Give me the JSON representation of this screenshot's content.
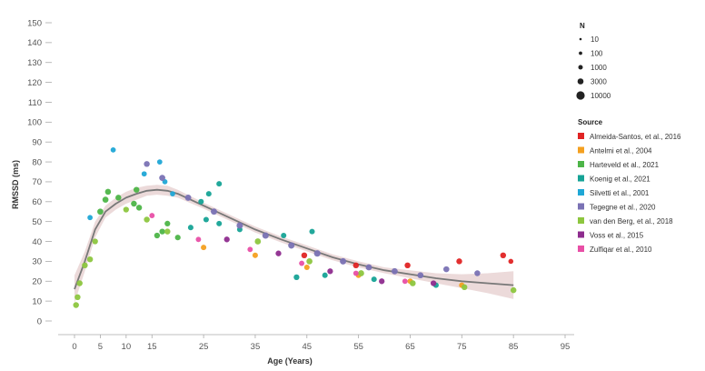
{
  "chart_data": {
    "type": "scatter",
    "xlabel": "Age (Years)",
    "ylabel": "RMSSD (ms)",
    "xlim": [
      0,
      95
    ],
    "ylim": [
      0,
      150
    ],
    "x_ticks": [
      0,
      5,
      10,
      15,
      25,
      35,
      45,
      55,
      65,
      75,
      85,
      95
    ],
    "y_ticks": [
      0,
      10,
      20,
      30,
      40,
      50,
      60,
      70,
      80,
      90,
      100,
      110,
      120,
      130,
      140,
      150
    ],
    "grid": false,
    "size_legend": {
      "title": "N",
      "entries": [
        "10",
        "100",
        "1000",
        "3000",
        "10000"
      ],
      "n_values": [
        10,
        100,
        1000,
        3000,
        10000
      ]
    },
    "source_legend_title": "Source",
    "series": [
      {
        "name": "Almeida-Santos, et al., 2016",
        "color": "#e02424",
        "points": [
          [
            44.5,
            33,
            300
          ],
          [
            54.5,
            28,
            300
          ],
          [
            64.5,
            28,
            300
          ],
          [
            74.5,
            30,
            300
          ],
          [
            83,
            33,
            300
          ],
          [
            84.5,
            30,
            30
          ]
        ]
      },
      {
        "name": "Antelmi et al., 2004",
        "color": "#f4a020",
        "points": [
          [
            25,
            37,
            100
          ],
          [
            35,
            33,
            100
          ],
          [
            45,
            27,
            100
          ],
          [
            55,
            23,
            100
          ],
          [
            65,
            20,
            100
          ],
          [
            75,
            18,
            100
          ]
        ]
      },
      {
        "name": "Harteveld et al., 2021",
        "color": "#4db548",
        "points": [
          [
            5,
            55,
            600
          ],
          [
            6,
            61,
            500
          ],
          [
            6.5,
            65,
            400
          ],
          [
            8.5,
            62,
            300
          ],
          [
            11.5,
            59,
            300
          ],
          [
            12,
            66,
            300
          ],
          [
            12.5,
            57,
            300
          ],
          [
            16,
            43,
            200
          ],
          [
            17,
            45,
            200
          ],
          [
            18,
            49,
            150
          ],
          [
            20,
            42,
            150
          ]
        ]
      },
      {
        "name": "Koenig et al., 2021",
        "color": "#16a396",
        "points": [
          [
            22.5,
            47,
            100
          ],
          [
            24.5,
            60,
            100
          ],
          [
            25.5,
            51,
            100
          ],
          [
            26,
            64,
            100
          ],
          [
            28,
            69,
            100
          ],
          [
            28,
            49,
            100
          ],
          [
            32,
            46,
            100
          ],
          [
            40.5,
            43,
            100
          ],
          [
            43,
            22,
            200
          ],
          [
            46,
            45,
            100
          ],
          [
            48.5,
            23,
            100
          ],
          [
            58,
            21,
            100
          ],
          [
            70,
            18,
            100
          ]
        ]
      },
      {
        "name": "Silvetti et al., 2001",
        "color": "#1fa7d6",
        "points": [
          [
            3,
            52,
            50
          ],
          [
            7.5,
            86,
            50
          ],
          [
            13.5,
            74,
            50
          ],
          [
            16.5,
            80,
            50
          ],
          [
            17.5,
            70,
            50
          ],
          [
            19,
            64,
            50
          ]
        ]
      },
      {
        "name": "Tegegne et al., 2020",
        "color": "#7a72b4",
        "points": [
          [
            14,
            79,
            300
          ],
          [
            17,
            72,
            600
          ],
          [
            22,
            62,
            1000
          ],
          [
            27,
            55,
            1200
          ],
          [
            32,
            48,
            1500
          ],
          [
            37,
            43,
            1800
          ],
          [
            42,
            38,
            2000
          ],
          [
            47,
            34,
            2500
          ],
          [
            52,
            30,
            1500
          ],
          [
            57,
            27,
            1000
          ],
          [
            62,
            25,
            800
          ],
          [
            67,
            23,
            600
          ],
          [
            72,
            26,
            400
          ],
          [
            78,
            24,
            300
          ]
        ]
      },
      {
        "name": "van den Berg, et al., 2018",
        "color": "#8dc63f",
        "points": [
          [
            0.3,
            8,
            300
          ],
          [
            0.6,
            12,
            300
          ],
          [
            1,
            19,
            300
          ],
          [
            2,
            28,
            300
          ],
          [
            3,
            31,
            300
          ],
          [
            4,
            40,
            200
          ],
          [
            10,
            56,
            200
          ],
          [
            14,
            51,
            300
          ],
          [
            18,
            45,
            300
          ],
          [
            35.5,
            40,
            600
          ],
          [
            45.5,
            30,
            600
          ],
          [
            55.5,
            24,
            500
          ],
          [
            65.5,
            19,
            400
          ],
          [
            75.5,
            17,
            300
          ],
          [
            85,
            15.5,
            300
          ]
        ]
      },
      {
        "name": "Voss et al., 2015",
        "color": "#8e2c8e",
        "points": [
          [
            29.5,
            41,
            200
          ],
          [
            39.5,
            34,
            200
          ],
          [
            49.5,
            25,
            200
          ],
          [
            59.5,
            20,
            200
          ],
          [
            69.5,
            19,
            200
          ]
        ]
      },
      {
        "name": "Zulfiqar et al., 2010",
        "color": "#e84fa6",
        "points": [
          [
            15,
            53,
            60
          ],
          [
            24,
            41,
            60
          ],
          [
            34,
            36,
            60
          ],
          [
            44,
            29,
            60
          ],
          [
            54.5,
            24,
            60
          ],
          [
            64,
            20,
            60
          ]
        ]
      }
    ],
    "trend": {
      "x": [
        0,
        2,
        4,
        6,
        8,
        10,
        12,
        14,
        16,
        18,
        20,
        25,
        30,
        35,
        40,
        45,
        50,
        55,
        60,
        65,
        70,
        75,
        80,
        85
      ],
      "y": [
        16,
        30,
        46,
        55,
        59,
        62,
        64,
        65.5,
        66,
        65.5,
        64,
        58,
        52,
        46,
        41,
        36.5,
        32,
        28.5,
        25.5,
        23.5,
        21.5,
        20,
        19,
        18
      ],
      "ci_low": [
        9,
        25,
        42,
        52,
        56,
        59,
        61,
        63,
        63.5,
        63,
        62,
        56.5,
        50.5,
        44.5,
        39.5,
        35,
        30.5,
        27,
        24,
        21.5,
        19,
        16.5,
        14,
        11
      ],
      "ci_high": [
        23,
        35,
        50,
        58,
        62,
        65,
        67,
        68,
        68.5,
        68,
        66,
        59.5,
        53.5,
        47.5,
        42.5,
        38,
        33.5,
        30,
        27,
        25.5,
        24,
        23.5,
        24,
        25
      ]
    }
  },
  "colors": {
    "trend_line": "#787878",
    "ci_band": "#ecdada",
    "axis": "#aaaaaa",
    "size_legend_dot": "#222222"
  }
}
